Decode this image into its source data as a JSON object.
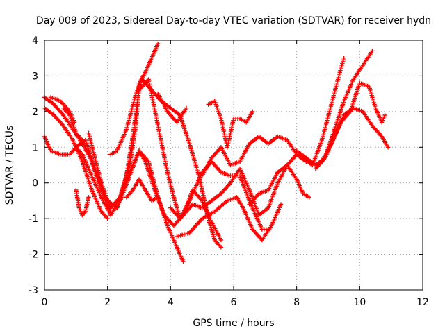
{
  "chart_data": {
    "type": "scatter",
    "title": "Day 009 of 2023, Sidereal Day-to-day VTEC variation (SDTVAR) for receiver hydn",
    "xlabel": "GPS time / hours",
    "ylabel": "SDTVAR / TECUs",
    "xlim": [
      0,
      12
    ],
    "ylim": [
      -3,
      4
    ],
    "xticks": [
      0,
      2,
      4,
      6,
      8,
      10,
      12
    ],
    "yticks": [
      -3,
      -2,
      -1,
      0,
      1,
      2,
      3,
      4
    ],
    "grid": true,
    "marker": "+",
    "color": "#ff0000",
    "series": [
      {
        "x": [
          0.0,
          0.3,
          0.6,
          0.9,
          1.2,
          1.5,
          1.8,
          2.0
        ],
        "y": [
          2.1,
          1.9,
          1.6,
          1.2,
          0.6,
          -0.2,
          -0.8,
          -1.0
        ]
      },
      {
        "x": [
          0.0,
          0.3,
          0.6,
          0.9,
          1.2,
          1.4
        ],
        "y": [
          2.4,
          2.2,
          1.9,
          1.5,
          1.1,
          0.8
        ]
      },
      {
        "x": [
          0.2,
          0.5,
          0.8,
          0.95
        ],
        "y": [
          2.4,
          2.3,
          2.0,
          1.7
        ]
      },
      {
        "x": [
          0.6,
          0.8,
          1.0,
          1.2,
          1.5,
          1.8,
          2.1,
          2.4,
          2.7,
          2.9,
          3.0,
          3.2,
          3.4,
          3.6
        ],
        "y": [
          2.1,
          1.9,
          1.4,
          1.2,
          0.6,
          -0.2,
          -0.7,
          -0.4,
          0.5,
          1.6,
          2.8,
          3.1,
          3.5,
          3.9
        ]
      },
      {
        "x": [
          0.0,
          0.2,
          0.5,
          0.8,
          1.0,
          1.3,
          1.6,
          1.9,
          2.1
        ],
        "y": [
          1.3,
          0.9,
          0.8,
          0.8,
          1.0,
          1.2,
          0.4,
          -0.3,
          -0.8
        ]
      },
      {
        "x": [
          1.0,
          1.2,
          1.5,
          1.8,
          2.1,
          2.4,
          2.7,
          3.0,
          3.3,
          3.6,
          3.9,
          4.2,
          4.4
        ],
        "y": [
          1.0,
          0.8,
          0.2,
          -0.4,
          -0.9,
          -0.5,
          0.2,
          0.9,
          0.6,
          -0.4,
          -1.2,
          -1.8,
          -2.2
        ]
      },
      {
        "x": [
          1.0,
          1.1,
          1.2,
          1.3,
          1.4
        ],
        "y": [
          -0.2,
          -0.7,
          -0.9,
          -0.8,
          -0.4
        ]
      },
      {
        "x": [
          1.4,
          1.6,
          1.8,
          2.0,
          2.3,
          2.6,
          2.8,
          3.0,
          3.3,
          3.6,
          3.9,
          4.1,
          4.3
        ],
        "y": [
          1.4,
          0.7,
          0.0,
          -0.5,
          -0.7,
          0.2,
          1.3,
          2.6,
          2.9,
          1.6,
          0.3,
          -0.4,
          -1.0
        ]
      },
      {
        "x": [
          2.1,
          2.3,
          2.6,
          2.9,
          3.1,
          3.4,
          3.7,
          4.0,
          4.3,
          4.6,
          4.9,
          5.2,
          5.4,
          5.6
        ],
        "y": [
          0.8,
          0.9,
          1.5,
          2.5,
          2.9,
          2.6,
          2.3,
          2.1,
          1.9,
          1.1,
          0.2,
          -1.0,
          -1.6,
          -1.8
        ]
      },
      {
        "x": [
          3.6,
          3.9,
          4.2,
          4.5
        ],
        "y": [
          2.5,
          2.0,
          1.7,
          2.1
        ]
      },
      {
        "x": [
          2.4,
          2.7,
          3.0,
          3.2,
          3.5,
          3.8,
          4.1,
          4.4,
          4.7,
          5.0,
          5.3,
          5.6
        ],
        "y": [
          -0.5,
          0.3,
          0.9,
          0.6,
          -0.2,
          -0.9,
          -1.2,
          -0.9,
          -0.2,
          -0.5,
          -1.1,
          -1.6
        ]
      },
      {
        "x": [
          2.6,
          2.8,
          3.0,
          3.2,
          3.4,
          3.6
        ],
        "y": [
          -0.4,
          -0.2,
          0.1,
          -0.2,
          -0.5,
          -0.4
        ]
      },
      {
        "x": [
          4.0,
          4.3,
          4.6,
          5.0,
          5.3,
          5.6,
          5.9,
          6.2,
          6.5,
          6.7,
          6.9,
          7.1
        ],
        "y": [
          -0.7,
          -1.0,
          -0.5,
          0.3,
          0.6,
          0.3,
          0.2,
          0.2,
          -0.5,
          -0.9,
          -1.3,
          -1.3
        ]
      },
      {
        "x": [
          4.2,
          4.6,
          5.0,
          5.4,
          5.8,
          6.1,
          6.3,
          6.6,
          6.9,
          7.2,
          7.5
        ],
        "y": [
          -1.5,
          -1.4,
          -1.0,
          -0.8,
          -0.5,
          -0.4,
          -0.7,
          -1.3,
          -1.6,
          -1.2,
          -0.6
        ]
      },
      {
        "x": [
          5.2,
          5.4,
          5.6,
          5.8,
          6.0,
          6.2,
          6.4,
          6.6
        ],
        "y": [
          2.2,
          2.3,
          1.8,
          1.0,
          1.8,
          1.8,
          1.7,
          2.0
        ]
      },
      {
        "x": [
          5.0,
          5.3,
          5.6,
          5.9,
          6.2,
          6.5,
          6.8,
          7.1,
          7.4,
          7.7,
          8.0
        ],
        "y": [
          0.2,
          0.7,
          1.0,
          0.5,
          0.6,
          1.1,
          1.3,
          1.1,
          1.3,
          1.2,
          0.8
        ]
      },
      {
        "x": [
          4.4,
          4.7,
          5.0,
          5.3,
          5.6,
          5.9,
          6.2,
          6.5,
          6.8,
          7.1,
          7.4,
          7.7,
          8.0,
          8.3
        ],
        "y": [
          -0.9,
          -0.6,
          -0.7,
          -0.5,
          -0.3,
          0.0,
          0.4,
          -0.2,
          -0.9,
          -0.7,
          0.0,
          0.5,
          0.8,
          0.6
        ]
      },
      {
        "x": [
          6.5,
          6.8,
          7.1,
          7.4,
          7.7,
          8.0,
          8.2,
          8.4
        ],
        "y": [
          -0.6,
          -0.3,
          -0.2,
          0.3,
          0.5,
          0.1,
          -0.3,
          -0.4
        ]
      },
      {
        "x": [
          8.0,
          8.3,
          8.6,
          8.9,
          9.2,
          9.5,
          9.8,
          10.1,
          10.4
        ],
        "y": [
          0.9,
          0.7,
          0.5,
          0.7,
          1.5,
          2.3,
          2.9,
          3.3,
          3.7
        ]
      },
      {
        "x": [
          8.2,
          8.5,
          8.8,
          9.1,
          9.4,
          9.5
        ],
        "y": [
          0.7,
          0.5,
          1.2,
          2.2,
          3.2,
          3.5
        ]
      },
      {
        "x": [
          8.8,
          9.1,
          9.4,
          9.7,
          10.0,
          10.3,
          10.5,
          10.7,
          10.8
        ],
        "y": [
          0.6,
          1.1,
          1.7,
          2.0,
          2.8,
          2.7,
          2.1,
          1.7,
          1.9
        ]
      },
      {
        "x": [
          8.6,
          8.9,
          9.2,
          9.5,
          9.8,
          10.1,
          10.4,
          10.7,
          10.9
        ],
        "y": [
          0.4,
          0.7,
          1.3,
          1.9,
          2.1,
          2.0,
          1.6,
          1.3,
          1.0
        ]
      }
    ]
  }
}
